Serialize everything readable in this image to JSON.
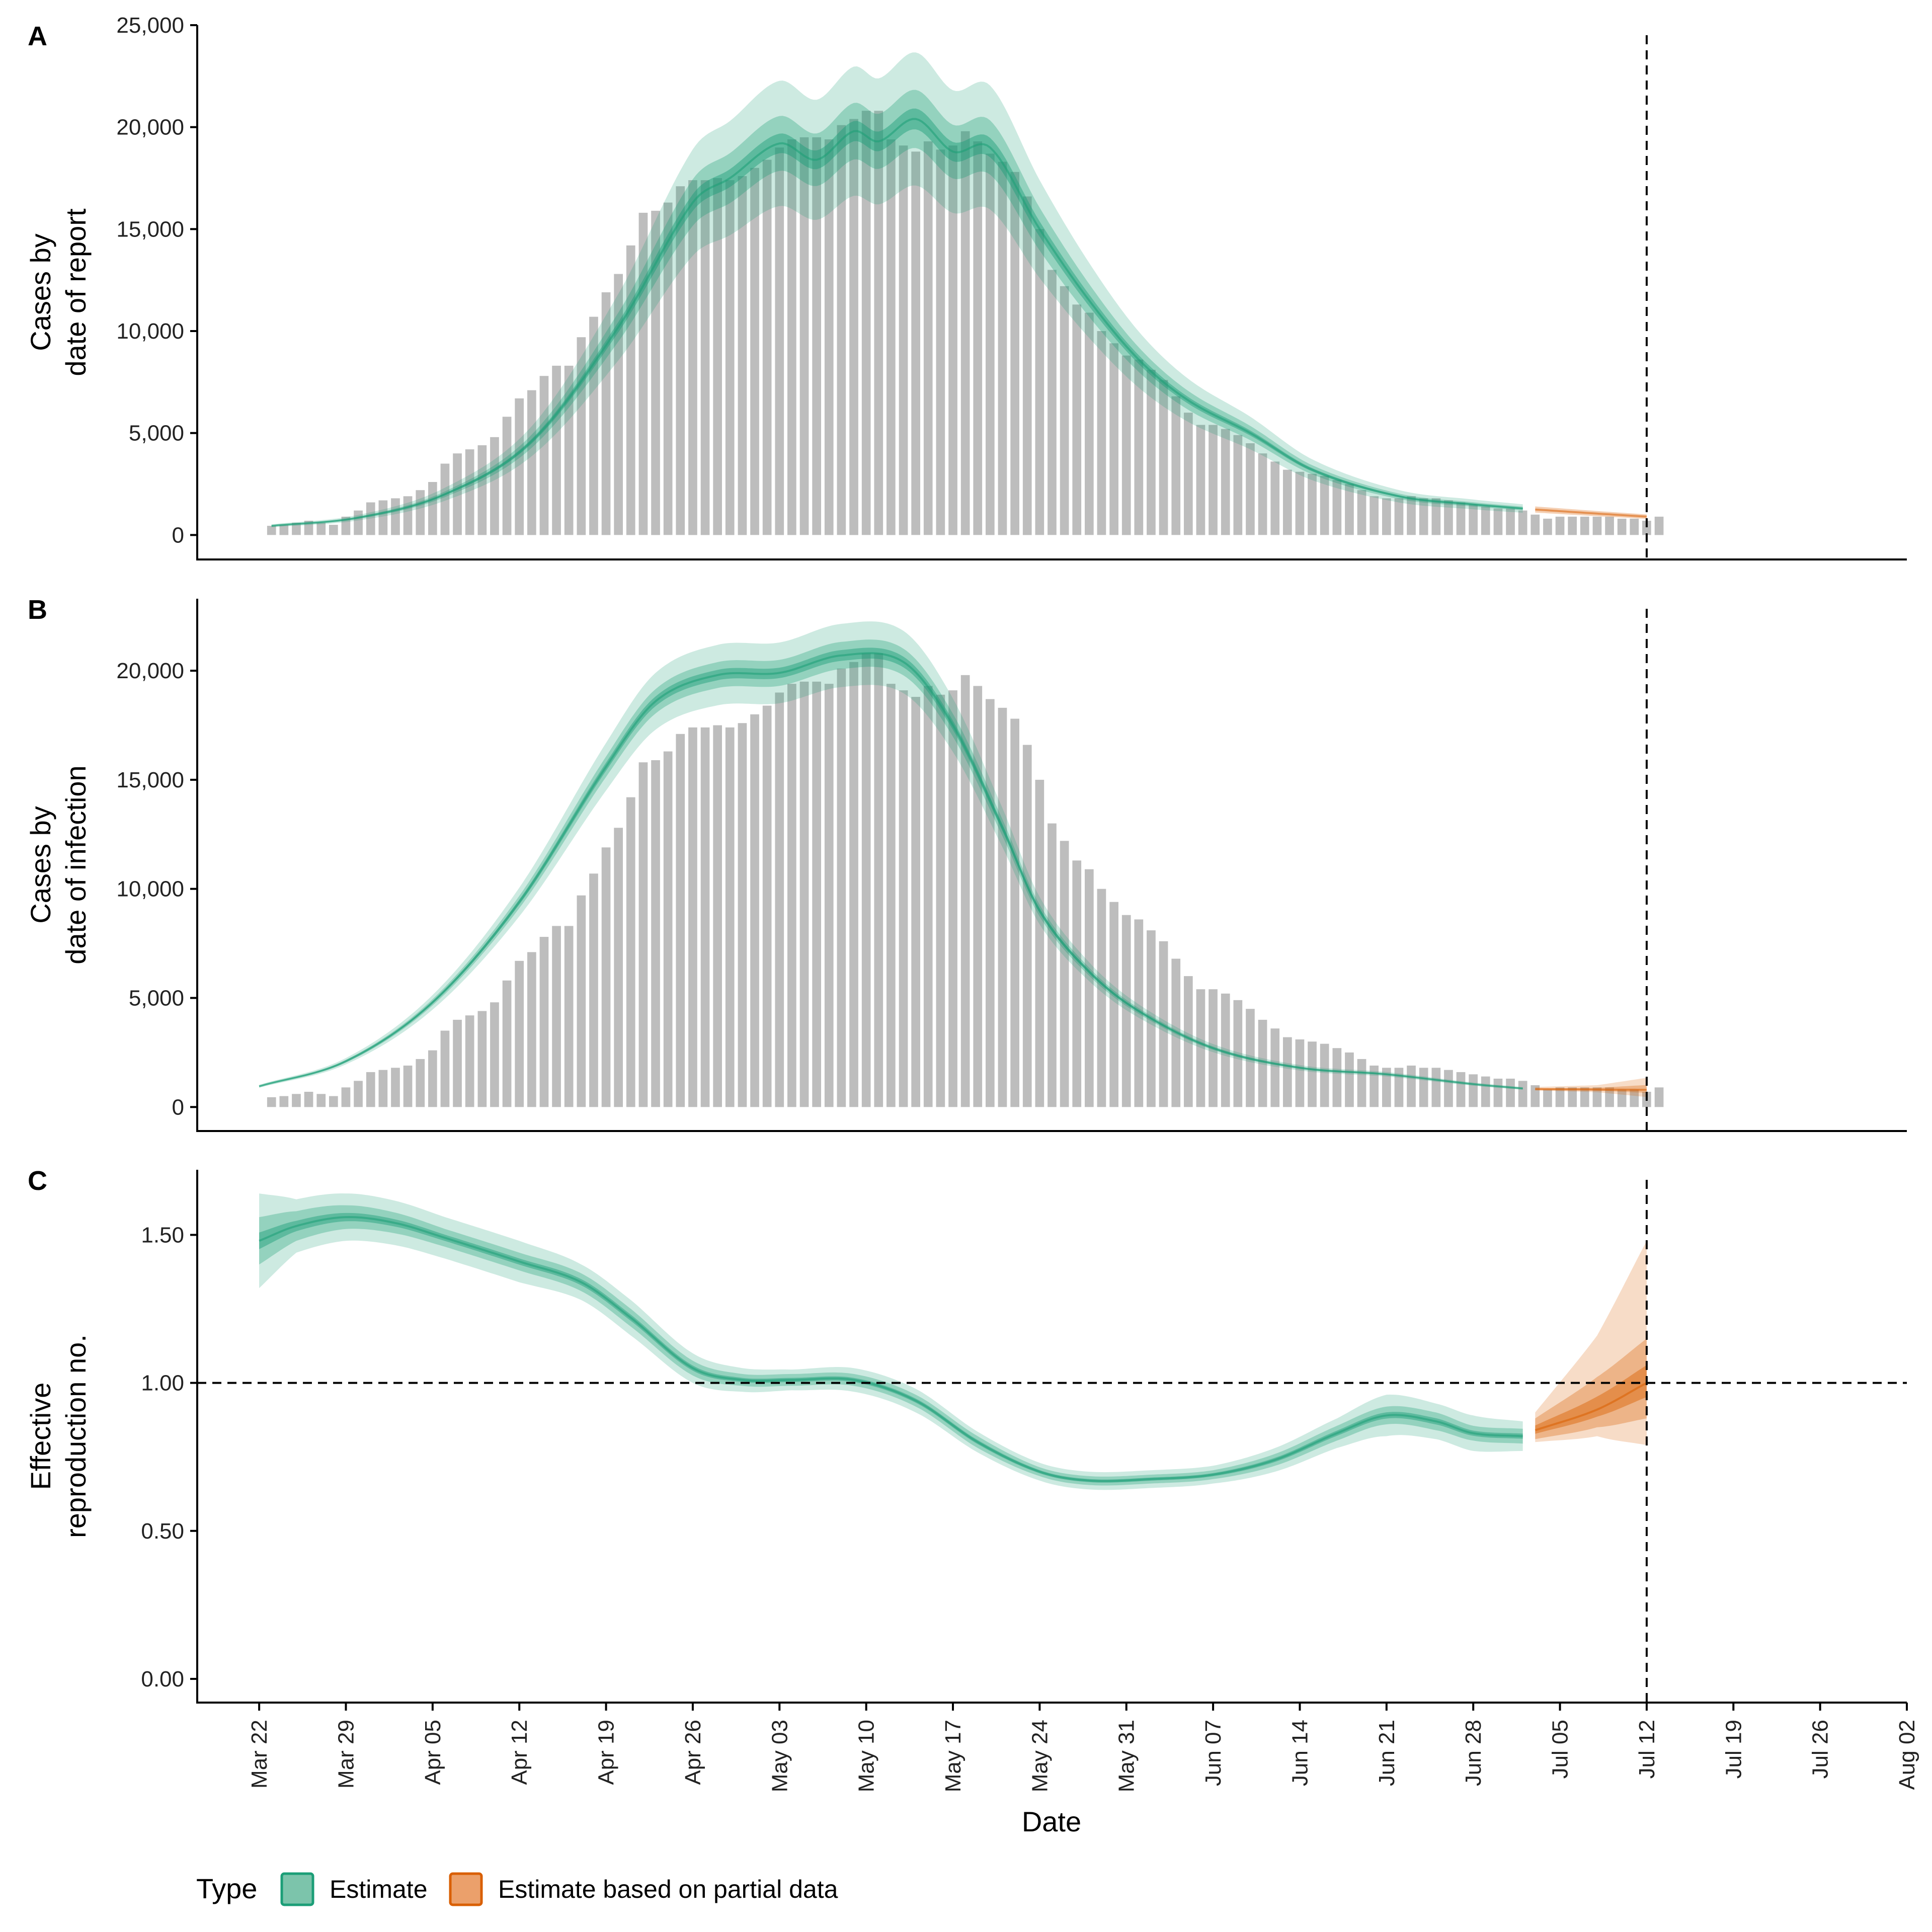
{
  "legend": {
    "title": "Type",
    "items": [
      {
        "label": "Estimate",
        "fill": "#7cc4ab",
        "stroke": "#1b9e77"
      },
      {
        "label": "Estimate based on partial data",
        "fill": "#eba06b",
        "stroke": "#d95f02"
      }
    ]
  },
  "colors": {
    "estimate": "#1b9e77",
    "partial": "#d95f02",
    "bars": "#bdbdbd",
    "axis": "#000000"
  },
  "chart_data": [
    {
      "type": "bar",
      "panel": "A",
      "ylabel": "Cases by\ndate of report",
      "ylim": [
        -1200,
        25000
      ],
      "yticks": [
        0,
        5000,
        10000,
        15000,
        20000,
        25000
      ],
      "ytick_labels": [
        "0",
        "5,000",
        "10,000",
        "15,000",
        "20,000",
        "25,000"
      ],
      "bars_start": "2020-03-23",
      "bars": [
        450,
        500,
        600,
        700,
        600,
        500,
        900,
        1200,
        1600,
        1700,
        1800,
        1900,
        2200,
        2600,
        3500,
        4000,
        4200,
        4400,
        4800,
        5800,
        6700,
        7100,
        7800,
        8300,
        8300,
        9700,
        10700,
        11900,
        12800,
        14200,
        15800,
        15900,
        16300,
        17100,
        17400,
        17400,
        17500,
        17400,
        17600,
        18000,
        18400,
        19000,
        19400,
        19500,
        19500,
        19400,
        20100,
        20400,
        20800,
        20800,
        19400,
        19100,
        18800,
        19300,
        18900,
        19100,
        19800,
        19300,
        18700,
        18300,
        17800,
        16600,
        15000,
        13000,
        12200,
        11300,
        10900,
        10000,
        9400,
        8800,
        8600,
        8100,
        7600,
        6800,
        6000,
        5400,
        5400,
        5200,
        4900,
        4500,
        4000,
        3600,
        3200,
        3100,
        3000,
        2900,
        2700,
        2500,
        2200,
        1900,
        1800,
        1800,
        1900,
        1800,
        1800,
        1700,
        1600,
        1500,
        1400,
        1300,
        1300,
        1200,
        1000,
        800,
        900,
        900,
        900,
        900,
        900,
        800,
        800,
        700,
        900
      ],
      "estimate": {
        "start": "2020-03-23",
        "end": "2020-07-02",
        "median_knots": [
          [
            "2020-03-23",
            450
          ],
          [
            "2020-03-30",
            850
          ],
          [
            "2020-04-06",
            2000
          ],
          [
            "2020-04-13",
            4600
          ],
          [
            "2020-04-20",
            10200
          ],
          [
            "2020-04-26",
            16300
          ],
          [
            "2020-04-29",
            17500
          ],
          [
            "2020-05-03",
            19200
          ],
          [
            "2020-05-06",
            18400
          ],
          [
            "2020-05-09",
            19800
          ],
          [
            "2020-05-11",
            19300
          ],
          [
            "2020-05-14",
            20400
          ],
          [
            "2020-05-17",
            18800
          ],
          [
            "2020-05-20",
            19000
          ],
          [
            "2020-05-24",
            15000
          ],
          [
            "2020-05-28",
            11500
          ],
          [
            "2020-06-01",
            8600
          ],
          [
            "2020-06-05",
            6600
          ],
          [
            "2020-06-10",
            5000
          ],
          [
            "2020-06-15",
            3200
          ],
          [
            "2020-06-22",
            1900
          ],
          [
            "2020-06-28",
            1500
          ],
          [
            "2020-07-02",
            1300
          ]
        ],
        "ci90_frac": 0.16,
        "ci50_frac": 0.07,
        "ci20_frac": 0.025
      },
      "partial": {
        "start": "2020-07-03",
        "end": "2020-07-12",
        "median_knots": [
          [
            "2020-07-03",
            1250
          ],
          [
            "2020-07-08",
            1050
          ],
          [
            "2020-07-12",
            900
          ]
        ],
        "ci_frac": 0.12
      },
      "vline": "2020-07-12"
    },
    {
      "type": "bar",
      "panel": "B",
      "ylabel": "Cases by\ndate of infection",
      "ylim": [
        -1100,
        23300
      ],
      "yticks": [
        0,
        5000,
        10000,
        15000,
        20000
      ],
      "ytick_labels": [
        "0",
        "5,000",
        "10,000",
        "15,000",
        "20,000"
      ],
      "bars_same_as_panel": "A",
      "estimate": {
        "start": "2020-03-22",
        "end": "2020-07-02",
        "median_knots": [
          [
            "2020-03-22",
            950
          ],
          [
            "2020-03-29",
            2100
          ],
          [
            "2020-04-05",
            4800
          ],
          [
            "2020-04-12",
            9400
          ],
          [
            "2020-04-19",
            15600
          ],
          [
            "2020-04-23",
            18600
          ],
          [
            "2020-04-28",
            19800
          ],
          [
            "2020-05-03",
            19900
          ],
          [
            "2020-05-08",
            20700
          ],
          [
            "2020-05-13",
            20400
          ],
          [
            "2020-05-17",
            17500
          ],
          [
            "2020-05-21",
            12800
          ],
          [
            "2020-05-24",
            9000
          ],
          [
            "2020-05-28",
            6200
          ],
          [
            "2020-06-01",
            4400
          ],
          [
            "2020-06-07",
            2700
          ],
          [
            "2020-06-14",
            1800
          ],
          [
            "2020-06-21",
            1500
          ],
          [
            "2020-06-28",
            1050
          ],
          [
            "2020-07-02",
            850
          ]
        ],
        "ci90_frac": 0.07,
        "ci50_frac": 0.03,
        "ci20_frac": 0.012
      },
      "partial": {
        "start": "2020-07-03",
        "end": "2020-07-12",
        "median_knots": [
          [
            "2020-07-03",
            820
          ],
          [
            "2020-07-08",
            800
          ],
          [
            "2020-07-12",
            790
          ]
        ],
        "ci_spread": [
          [
            0,
            100
          ],
          [
            5,
            200
          ],
          [
            9,
            550
          ]
        ]
      },
      "vline": "2020-07-12"
    },
    {
      "type": "line",
      "panel": "C",
      "ylabel": "Effective\nreproduction no.",
      "ylim": [
        -0.08,
        1.72
      ],
      "yticks": [
        0,
        0.5,
        1.0,
        1.5
      ],
      "ytick_labels": [
        "0.00",
        "0.50",
        "1.00",
        "1.50"
      ],
      "hline": 1.0,
      "estimate": {
        "start": "2020-03-22",
        "end": "2020-07-02",
        "median_knots": [
          [
            "2020-03-22",
            1.48
          ],
          [
            "2020-03-25",
            1.53
          ],
          [
            "2020-03-29",
            1.56
          ],
          [
            "2020-04-02",
            1.54
          ],
          [
            "2020-04-06",
            1.49
          ],
          [
            "2020-04-12",
            1.41
          ],
          [
            "2020-04-17",
            1.34
          ],
          [
            "2020-04-21",
            1.22
          ],
          [
            "2020-04-26",
            1.05
          ],
          [
            "2020-04-30",
            1.01
          ],
          [
            "2020-05-04",
            1.01
          ],
          [
            "2020-05-09",
            1.01
          ],
          [
            "2020-05-14",
            0.94
          ],
          [
            "2020-05-19",
            0.8
          ],
          [
            "2020-05-24",
            0.7
          ],
          [
            "2020-05-28",
            0.67
          ],
          [
            "2020-06-02",
            0.675
          ],
          [
            "2020-06-07",
            0.69
          ],
          [
            "2020-06-12",
            0.74
          ],
          [
            "2020-06-17",
            0.83
          ],
          [
            "2020-06-21",
            0.89
          ],
          [
            "2020-06-25",
            0.87
          ],
          [
            "2020-06-28",
            0.83
          ],
          [
            "2020-07-02",
            0.82
          ]
        ],
        "ci90": [
          0.16,
          0.09,
          0.08,
          0.075,
          0.07,
          0.07,
          0.06,
          0.06,
          0.05,
          0.04,
          0.035,
          0.04,
          0.04,
          0.035,
          0.03,
          0.03,
          0.03,
          0.03,
          0.04,
          0.05,
          0.07,
          0.06,
          0.06,
          0.05
        ],
        "ci50": [
          0.08,
          0.05,
          0.04,
          0.035,
          0.03,
          0.03,
          0.03,
          0.03,
          0.025,
          0.02,
          0.02,
          0.02,
          0.02,
          0.02,
          0.015,
          0.015,
          0.015,
          0.015,
          0.02,
          0.025,
          0.03,
          0.03,
          0.025,
          0.025
        ]
      },
      "partial": {
        "start": "2020-07-03",
        "end": "2020-07-12",
        "median_knots": [
          [
            "2020-07-03",
            0.84
          ],
          [
            "2020-07-08",
            0.91
          ],
          [
            "2020-07-12",
            1.0
          ]
        ],
        "ci90": [
          [
            0,
            0.06,
            0.04
          ],
          [
            5,
            0.25,
            0.09
          ],
          [
            9,
            0.48,
            0.21
          ]
        ],
        "ci50": [
          [
            0,
            0.04,
            0.03
          ],
          [
            5,
            0.11,
            0.06
          ],
          [
            9,
            0.15,
            0.12
          ]
        ]
      },
      "vline": "2020-07-12"
    }
  ],
  "x_axis": {
    "label": "Date",
    "min": "2020-03-17",
    "max": "2020-08-02",
    "ticks": [
      "2020-03-22",
      "2020-03-29",
      "2020-04-05",
      "2020-04-12",
      "2020-04-19",
      "2020-04-26",
      "2020-05-03",
      "2020-05-10",
      "2020-05-17",
      "2020-05-24",
      "2020-05-31",
      "2020-06-07",
      "2020-06-14",
      "2020-06-21",
      "2020-06-28",
      "2020-07-05",
      "2020-07-12",
      "2020-07-19",
      "2020-07-26",
      "2020-08-02"
    ],
    "tick_labels": [
      "Mar 22",
      "Mar 29",
      "Apr 05",
      "Apr 12",
      "Apr 19",
      "Apr 26",
      "May 03",
      "May 10",
      "May 17",
      "May 24",
      "May 31",
      "Jun 07",
      "Jun 14",
      "Jun 21",
      "Jun 28",
      "Jul 05",
      "Jul 12",
      "Jul 19",
      "Jul 26",
      "Aug 02"
    ]
  }
}
